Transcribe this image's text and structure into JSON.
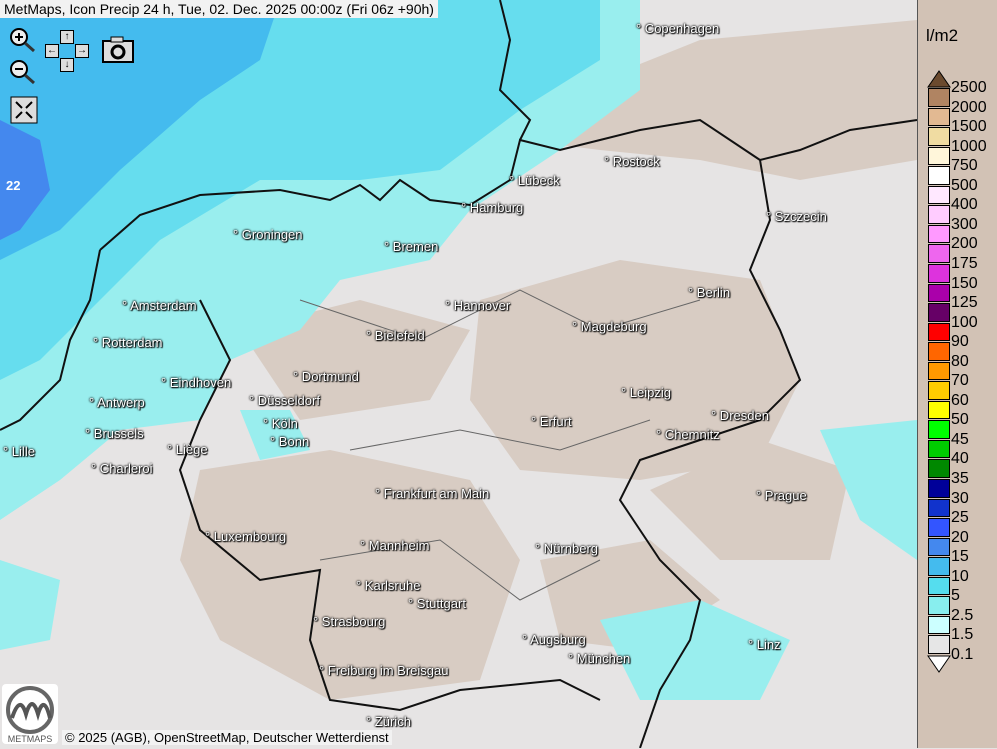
{
  "title": "MetMaps, Icon Precip 24 h, Tue, 02. Dec. 2025 00:00z (Fri 06z +90h)",
  "controls": {
    "zoom_in": "zoom-in",
    "zoom_out": "zoom-out",
    "pan_up": "↑",
    "pan_down": "↓",
    "pan_left": "←",
    "pan_right": "→",
    "snapshot": "camera",
    "fullscreen": "fullscreen"
  },
  "map_value_label": "22",
  "cities": [
    "Copenhagen",
    "Rostock",
    "Lübeck",
    "Hamburg",
    "Szczecin",
    "Groningen",
    "Bremen",
    "Berlin",
    "Hannover",
    "Amsterdam",
    "Magdeburg",
    "Bielefeld",
    "Rotterdam",
    "Dortmund",
    "Eindhoven",
    "Leipzig",
    "Antwerp",
    "Düsseldorf",
    "Dresden",
    "Erfurt",
    "Köln",
    "Brussels",
    "Chemnitz",
    "Bonn",
    "Lille",
    "Liège",
    "Charleroi",
    "Prague",
    "Frankfurt am Main",
    "Luxembourg",
    "Mannheim",
    "Nürnberg",
    "Karlsruhe",
    "Stuttgart",
    "Strasbourg",
    "Augsburg",
    "Linz",
    "München",
    "Freiburg im Breisgau",
    "Zürich"
  ],
  "legend": {
    "unit": "l/m2",
    "labels": [
      "2500",
      "2000",
      "1500",
      "1000",
      "750",
      "500",
      "400",
      "300",
      "200",
      "175",
      "150",
      "125",
      "100",
      "90",
      "80",
      "70",
      "60",
      "50",
      "45",
      "40",
      "35",
      "30",
      "25",
      "20",
      "15",
      "10",
      "5",
      "2.5",
      "1.5",
      "0.1"
    ],
    "colors": [
      "#b08462",
      "#e2b992",
      "#f0dca2",
      "#fff6da",
      "#ffffff",
      "#ffe8ff",
      "#ffccff",
      "#ff99ff",
      "#ee66ee",
      "#dd33dd",
      "#aa00aa",
      "#660066",
      "#ff0000",
      "#ff6600",
      "#ff9900",
      "#ffcc00",
      "#ffff00",
      "#00ff00",
      "#00cc00",
      "#008800",
      "#000099",
      "#1133cc",
      "#3355ff",
      "#4488ee",
      "#44bbee",
      "#55ddee",
      "#88eeee",
      "#ccffff",
      "#e6e6e6"
    ],
    "top_color": "#6b4a2e",
    "bottom_color": "#ffffff"
  },
  "copyright": "© 2025 (AGB), OpenStreetMap, Deutscher Wetterdienst",
  "logo_text": "METMAPS"
}
